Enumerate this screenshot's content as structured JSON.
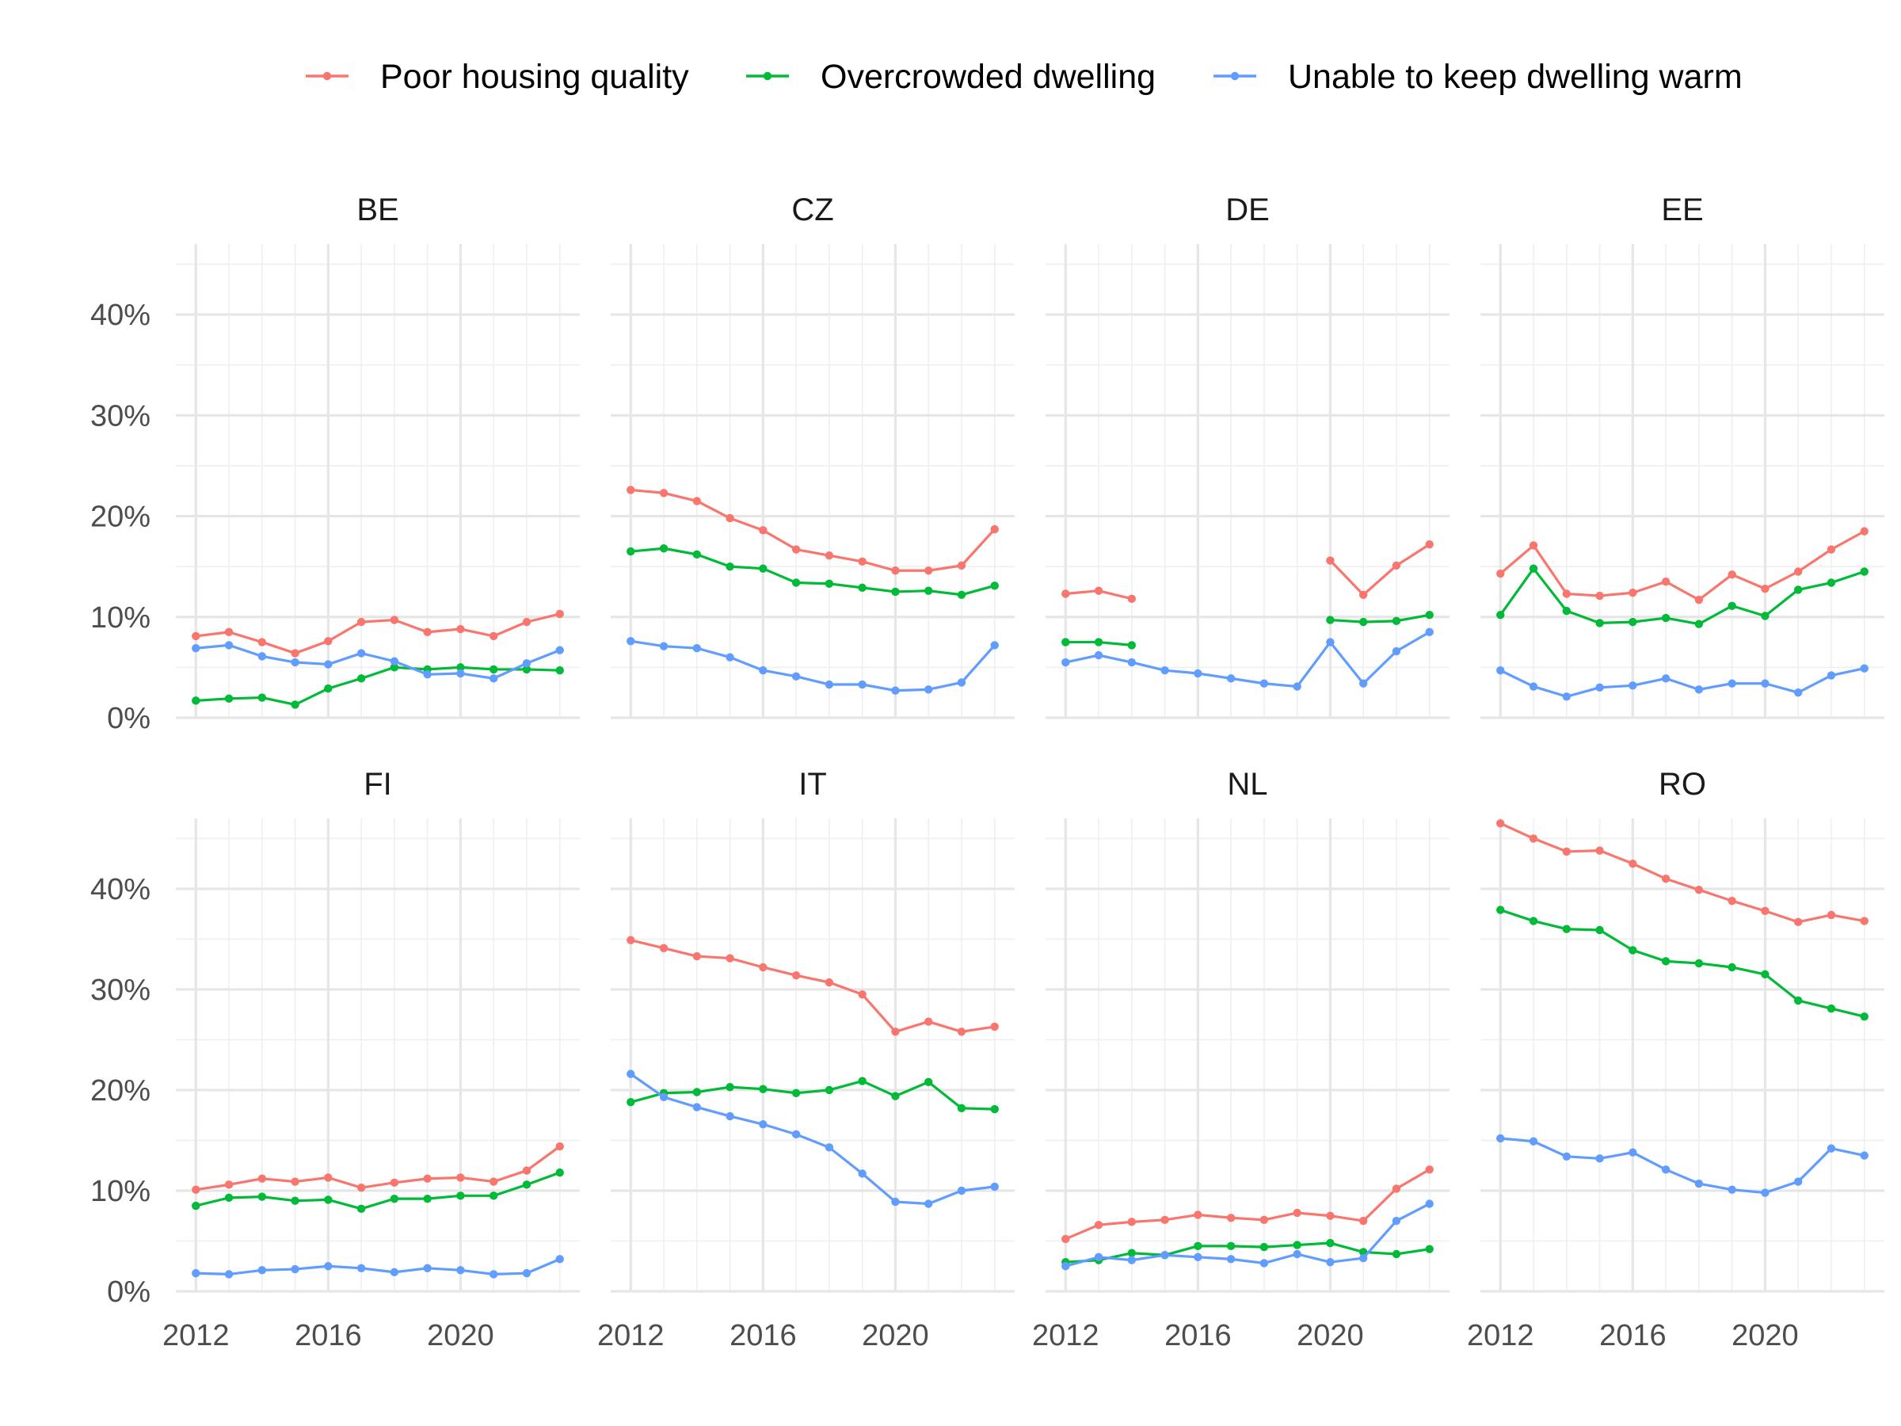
{
  "chart_data": {
    "type": "line",
    "layout": "facet-grid-2x4",
    "legend_position": "top",
    "grid": true,
    "x": [
      2012,
      2013,
      2014,
      2015,
      2016,
      2017,
      2018,
      2019,
      2020,
      2021,
      2022,
      2023
    ],
    "xlim": [
      2012,
      2023
    ],
    "ylim": [
      0,
      0.47
    ],
    "x_ticks": [
      2012,
      2016,
      2020
    ],
    "x_tick_labels": [
      "2012",
      "2016",
      "2020"
    ],
    "y_ticks": [
      0,
      0.1,
      0.2,
      0.3,
      0.4
    ],
    "y_tick_labels": [
      "0%",
      "10%",
      "20%",
      "30%",
      "40%"
    ],
    "legend": [
      {
        "key": "poor",
        "name": "Poor housing quality",
        "color": "#F8766D"
      },
      {
        "key": "over",
        "name": "Overcrowded dwelling",
        "color": "#00BA38"
      },
      {
        "key": "warm",
        "name": "Unable to keep dwelling warm",
        "color": "#619CFF"
      }
    ],
    "panels": [
      {
        "label": "BE",
        "series": {
          "poor": [
            0.081,
            0.085,
            0.075,
            0.064,
            0.076,
            0.095,
            0.097,
            0.085,
            0.088,
            0.081,
            0.095,
            0.103
          ],
          "over": [
            0.017,
            0.019,
            0.02,
            0.013,
            0.029,
            0.039,
            0.05,
            0.048,
            0.05,
            0.048,
            0.048,
            0.047
          ],
          "warm": [
            0.069,
            0.072,
            0.061,
            0.055,
            0.053,
            0.064,
            0.056,
            0.043,
            0.044,
            0.039,
            0.054,
            0.067
          ]
        }
      },
      {
        "label": "CZ",
        "series": {
          "poor": [
            0.226,
            0.223,
            0.215,
            0.198,
            0.186,
            0.167,
            0.161,
            0.155,
            0.146,
            0.146,
            0.151,
            0.187
          ],
          "over": [
            0.165,
            0.168,
            0.162,
            0.15,
            0.148,
            0.134,
            0.133,
            0.129,
            0.125,
            0.126,
            0.122,
            0.131
          ],
          "warm": [
            0.076,
            0.071,
            0.069,
            0.06,
            0.047,
            0.041,
            0.033,
            0.033,
            0.027,
            0.028,
            0.035,
            0.072
          ]
        }
      },
      {
        "label": "DE",
        "series": {
          "poor": [
            0.123,
            0.126,
            0.118,
            null,
            null,
            null,
            null,
            null,
            0.156,
            0.122,
            0.151,
            0.172
          ],
          "over": [
            0.075,
            0.075,
            0.072,
            null,
            null,
            null,
            null,
            null,
            0.097,
            0.095,
            0.096,
            0.102
          ],
          "warm": [
            0.055,
            0.062,
            0.055,
            0.047,
            0.044,
            0.039,
            0.034,
            0.031,
            0.075,
            0.034,
            0.066,
            0.085
          ]
        }
      },
      {
        "label": "EE",
        "series": {
          "poor": [
            0.143,
            0.171,
            0.123,
            0.121,
            0.124,
            0.135,
            0.117,
            0.142,
            0.128,
            0.145,
            0.167,
            0.185
          ],
          "over": [
            0.102,
            0.148,
            0.106,
            0.094,
            0.095,
            0.099,
            0.093,
            0.111,
            0.101,
            0.127,
            0.134,
            0.145
          ],
          "warm": [
            0.047,
            0.031,
            0.021,
            0.03,
            0.032,
            0.039,
            0.028,
            0.034,
            0.034,
            0.025,
            0.042,
            0.049
          ]
        }
      },
      {
        "label": "FI",
        "series": {
          "poor": [
            0.101,
            0.106,
            0.112,
            0.109,
            0.113,
            0.103,
            0.108,
            0.112,
            0.113,
            0.109,
            0.12,
            0.144
          ],
          "over": [
            0.085,
            0.093,
            0.094,
            0.09,
            0.091,
            0.082,
            0.092,
            0.092,
            0.095,
            0.095,
            0.106,
            0.118
          ],
          "warm": [
            0.018,
            0.017,
            0.021,
            0.022,
            0.025,
            0.023,
            0.019,
            0.023,
            0.021,
            0.017,
            0.018,
            0.032
          ]
        }
      },
      {
        "label": "IT",
        "series": {
          "poor": [
            0.349,
            0.341,
            0.333,
            0.331,
            0.322,
            0.314,
            0.307,
            0.295,
            0.258,
            0.268,
            0.258,
            0.263
          ],
          "over": [
            0.188,
            0.197,
            0.198,
            0.203,
            0.201,
            0.197,
            0.2,
            0.209,
            0.194,
            0.208,
            0.182,
            0.181
          ],
          "warm": [
            0.216,
            0.193,
            0.183,
            0.174,
            0.166,
            0.156,
            0.143,
            0.117,
            0.089,
            0.087,
            0.1,
            0.104
          ]
        }
      },
      {
        "label": "NL",
        "series": {
          "poor": [
            0.052,
            0.066,
            0.069,
            0.071,
            0.076,
            0.073,
            0.071,
            0.078,
            0.075,
            0.07,
            0.102,
            0.121
          ],
          "over": [
            0.029,
            0.031,
            0.038,
            0.036,
            0.045,
            0.045,
            0.044,
            0.046,
            0.048,
            0.039,
            0.037,
            0.042
          ],
          "warm": [
            0.025,
            0.034,
            0.031,
            0.036,
            0.034,
            0.032,
            0.028,
            0.037,
            0.029,
            0.033,
            0.07,
            0.087
          ]
        }
      },
      {
        "label": "RO",
        "series": {
          "poor": [
            0.465,
            0.45,
            0.437,
            0.438,
            0.425,
            0.41,
            0.399,
            0.388,
            0.378,
            0.367,
            0.374,
            0.368
          ],
          "over": [
            0.379,
            0.368,
            0.36,
            0.359,
            0.339,
            0.328,
            0.326,
            0.322,
            0.315,
            0.289,
            0.281,
            0.273
          ],
          "warm": [
            0.152,
            0.149,
            0.134,
            0.132,
            0.138,
            0.121,
            0.107,
            0.101,
            0.098,
            0.109,
            0.142,
            0.135
          ]
        }
      }
    ]
  }
}
